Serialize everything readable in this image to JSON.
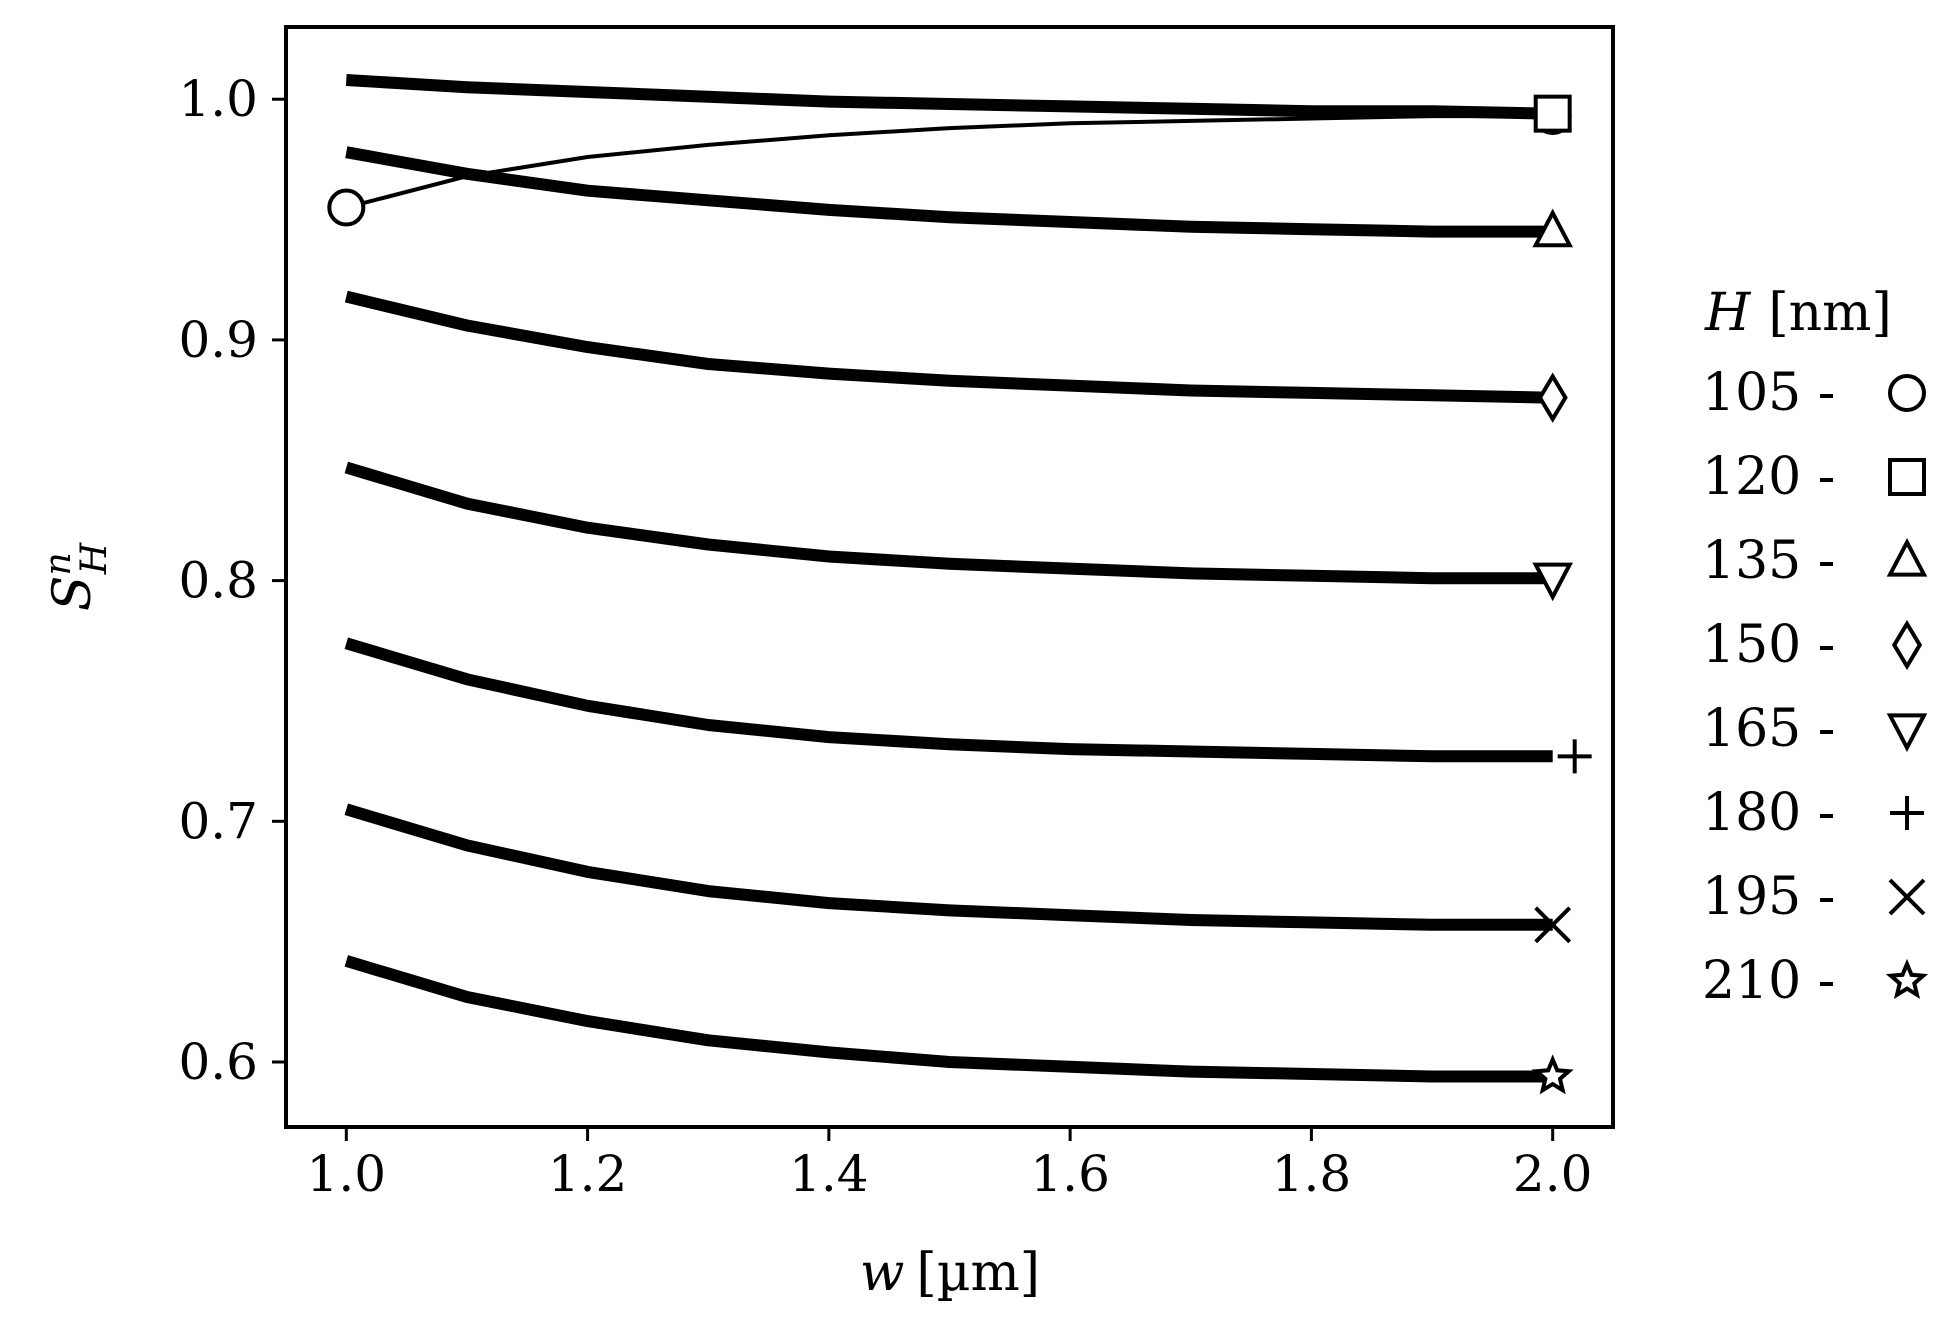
{
  "chart_data": {
    "type": "line",
    "xlabel": {
      "var": "w",
      "unit": "[µm]"
    },
    "ylabel": {
      "base": "S",
      "sup": "n",
      "sub": "H"
    },
    "xlim": [
      0.95,
      2.05
    ],
    "ylim": [
      0.573,
      1.03
    ],
    "xticks": [
      1.0,
      1.2,
      1.4,
      1.6,
      1.8,
      2.0
    ],
    "xtick_labels": [
      "1.0",
      "1.2",
      "1.4",
      "1.6",
      "1.8",
      "2.0"
    ],
    "yticks": [
      0.6,
      0.7,
      0.8,
      0.9,
      1.0
    ],
    "ytick_labels": [
      "0.6",
      "0.7",
      "0.8",
      "0.9",
      "1.0"
    ],
    "grid": false,
    "legend": {
      "placement": "right",
      "title_var": "H",
      "title_unit": "[nm]"
    },
    "series": [
      {
        "name": "105",
        "label": "105 -",
        "marker": "circle",
        "line": "thin",
        "x": [
          1.0,
          1.1,
          1.2,
          1.3,
          1.4,
          1.5,
          1.6,
          1.7,
          1.8,
          1.9,
          2.0
        ],
        "y": [
          0.955,
          0.968,
          0.976,
          0.981,
          0.985,
          0.988,
          0.99,
          0.991,
          0.992,
          0.993,
          0.993
        ]
      },
      {
        "name": "120",
        "label": "120 -",
        "marker": "square",
        "line": "thick",
        "x": [
          1.0,
          1.1,
          1.2,
          1.3,
          1.4,
          1.5,
          1.6,
          1.7,
          1.8,
          1.9,
          2.0
        ],
        "y": [
          1.008,
          1.005,
          1.003,
          1.001,
          0.999,
          0.998,
          0.997,
          0.996,
          0.995,
          0.995,
          0.994
        ]
      },
      {
        "name": "135",
        "label": "135 -",
        "marker": "triangle-up",
        "line": "thick",
        "x": [
          1.0,
          1.1,
          1.2,
          1.3,
          1.4,
          1.5,
          1.6,
          1.7,
          1.8,
          1.9,
          2.0
        ],
        "y": [
          0.978,
          0.969,
          0.962,
          0.958,
          0.954,
          0.951,
          0.949,
          0.947,
          0.946,
          0.945,
          0.945
        ]
      },
      {
        "name": "150",
        "label": "150 -",
        "marker": "diamond",
        "line": "thick",
        "x": [
          1.0,
          1.1,
          1.2,
          1.3,
          1.4,
          1.5,
          1.6,
          1.7,
          1.8,
          1.9,
          2.0
        ],
        "y": [
          0.918,
          0.906,
          0.897,
          0.89,
          0.886,
          0.883,
          0.881,
          0.879,
          0.878,
          0.877,
          0.876
        ]
      },
      {
        "name": "165",
        "label": "165 -",
        "marker": "triangle-down",
        "line": "thick",
        "x": [
          1.0,
          1.1,
          1.2,
          1.3,
          1.4,
          1.5,
          1.6,
          1.7,
          1.8,
          1.9,
          2.0
        ],
        "y": [
          0.847,
          0.832,
          0.822,
          0.815,
          0.81,
          0.807,
          0.805,
          0.803,
          0.802,
          0.801,
          0.801
        ]
      },
      {
        "name": "180",
        "label": "180 -",
        "marker": "plus",
        "line": "thick",
        "x": [
          1.0,
          1.1,
          1.2,
          1.3,
          1.4,
          1.5,
          1.6,
          1.7,
          1.8,
          1.9,
          2.0
        ],
        "y": [
          0.774,
          0.759,
          0.748,
          0.74,
          0.735,
          0.732,
          0.73,
          0.729,
          0.728,
          0.727,
          0.727
        ]
      },
      {
        "name": "195",
        "label": "195 -",
        "marker": "x",
        "line": "thick",
        "x": [
          1.0,
          1.1,
          1.2,
          1.3,
          1.4,
          1.5,
          1.6,
          1.7,
          1.8,
          1.9,
          2.0
        ],
        "y": [
          0.705,
          0.69,
          0.679,
          0.671,
          0.666,
          0.663,
          0.661,
          0.659,
          0.658,
          0.657,
          0.657
        ]
      },
      {
        "name": "210",
        "label": "210 -",
        "marker": "star",
        "line": "thick",
        "x": [
          1.0,
          1.1,
          1.2,
          1.3,
          1.4,
          1.5,
          1.6,
          1.7,
          1.8,
          1.9,
          2.0
        ],
        "y": [
          0.642,
          0.627,
          0.617,
          0.609,
          0.604,
          0.6,
          0.598,
          0.596,
          0.595,
          0.594,
          0.594
        ]
      }
    ]
  }
}
